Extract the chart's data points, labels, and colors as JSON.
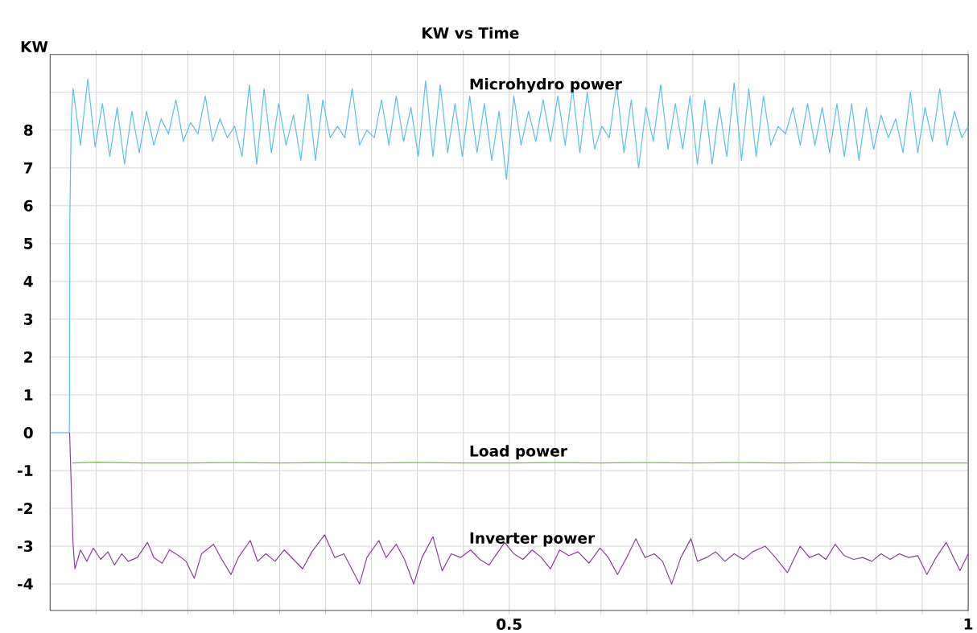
{
  "chart_data": {
    "type": "line",
    "title": "KW vs Time",
    "ylabel": "KW",
    "xlim": [
      0,
      1
    ],
    "ylim": [
      -4.7,
      10
    ],
    "xticks": [
      {
        "value": 0.05,
        "label": null
      },
      {
        "value": 0.1,
        "label": null
      },
      {
        "value": 0.15,
        "label": null
      },
      {
        "value": 0.2,
        "label": null
      },
      {
        "value": 0.25,
        "label": null
      },
      {
        "value": 0.3,
        "label": null
      },
      {
        "value": 0.35,
        "label": null
      },
      {
        "value": 0.4,
        "label": null
      },
      {
        "value": 0.45,
        "label": null
      },
      0.5,
      {
        "value": 0.55,
        "label": null
      },
      {
        "value": 0.6,
        "label": null
      },
      {
        "value": 0.65,
        "label": null
      },
      {
        "value": 0.7,
        "label": null
      },
      {
        "value": 0.75,
        "label": null
      },
      {
        "value": 0.8,
        "label": null
      },
      {
        "value": 0.85,
        "label": null
      },
      {
        "value": 0.9,
        "label": null
      },
      {
        "value": 0.95,
        "label": null
      },
      1
    ],
    "yticks": [
      -4,
      -3,
      -2,
      -1,
      0,
      1,
      2,
      3,
      4,
      5,
      6,
      7,
      8,
      {
        "value": 9,
        "label": null
      }
    ],
    "grid": true,
    "series": [
      {
        "name": "Microhydro power",
        "color": "#5bbfe8",
        "x": [
          0,
          0.021,
          0.0215,
          0.023,
          0.025,
          0.033,
          0.041,
          0.049,
          0.057,
          0.065,
          0.073,
          0.081,
          0.089,
          0.097,
          0.105,
          0.113,
          0.121,
          0.129,
          0.137,
          0.145,
          0.153,
          0.161,
          0.169,
          0.177,
          0.185,
          0.193,
          0.201,
          0.209,
          0.217,
          0.225,
          0.233,
          0.241,
          0.249,
          0.257,
          0.265,
          0.273,
          0.281,
          0.289,
          0.297,
          0.305,
          0.313,
          0.321,
          0.329,
          0.337,
          0.345,
          0.353,
          0.361,
          0.369,
          0.377,
          0.385,
          0.393,
          0.401,
          0.409,
          0.417,
          0.425,
          0.433,
          0.441,
          0.449,
          0.457,
          0.465,
          0.473,
          0.481,
          0.489,
          0.497,
          0.505,
          0.513,
          0.521,
          0.529,
          0.537,
          0.545,
          0.553,
          0.561,
          0.569,
          0.577,
          0.585,
          0.593,
          0.601,
          0.609,
          0.617,
          0.625,
          0.633,
          0.641,
          0.649,
          0.657,
          0.665,
          0.673,
          0.681,
          0.689,
          0.697,
          0.705,
          0.713,
          0.721,
          0.729,
          0.737,
          0.745,
          0.753,
          0.761,
          0.769,
          0.777,
          0.785,
          0.793,
          0.801,
          0.809,
          0.817,
          0.825,
          0.833,
          0.841,
          0.849,
          0.857,
          0.865,
          0.873,
          0.881,
          0.889,
          0.897,
          0.905,
          0.913,
          0.921,
          0.929,
          0.937,
          0.945,
          0.953,
          0.961,
          0.969,
          0.977,
          0.985,
          0.993,
          1.0
        ],
        "values": [
          0,
          0,
          5.7,
          8.3,
          9.1,
          7.6,
          9.35,
          7.55,
          8.7,
          7.3,
          8.6,
          7.1,
          8.5,
          7.4,
          8.5,
          7.6,
          8.3,
          7.9,
          8.8,
          7.7,
          8.2,
          7.9,
          8.9,
          7.7,
          8.3,
          7.8,
          8.1,
          7.3,
          9.2,
          7.1,
          9.1,
          7.4,
          8.7,
          7.6,
          8.4,
          7.2,
          8.95,
          7.2,
          8.8,
          7.8,
          8.1,
          7.8,
          9.1,
          7.6,
          8.0,
          7.8,
          8.8,
          7.6,
          8.9,
          7.7,
          8.6,
          7.3,
          9.3,
          7.3,
          9.2,
          7.4,
          8.7,
          7.3,
          8.9,
          7.4,
          8.7,
          7.2,
          8.5,
          6.7,
          8.9,
          7.6,
          8.5,
          7.7,
          8.8,
          7.7,
          8.9,
          7.6,
          9.1,
          7.4,
          9.0,
          7.5,
          8.1,
          7.8,
          9.2,
          7.4,
          8.8,
          7.0,
          8.6,
          7.7,
          9.2,
          7.5,
          8.7,
          7.5,
          8.9,
          7.1,
          8.8,
          7.1,
          8.6,
          7.3,
          9.25,
          7.2,
          9.1,
          7.3,
          8.9,
          7.6,
          8.1,
          7.9,
          8.6,
          7.6,
          8.7,
          7.6,
          8.6,
          7.4,
          8.7,
          7.3,
          8.7,
          7.2,
          8.6,
          7.5,
          8.4,
          7.8,
          8.3,
          7.4,
          9.0,
          7.4,
          8.6,
          7.7,
          9.1,
          7.6,
          8.5,
          7.8,
          8.1
        ]
      },
      {
        "name": "Load power",
        "color": "#7ab648",
        "x": [
          0.024,
          0.05,
          0.1,
          0.15,
          0.2,
          0.25,
          0.3,
          0.35,
          0.4,
          0.45,
          0.5,
          0.55,
          0.6,
          0.65,
          0.7,
          0.75,
          0.8,
          0.85,
          0.9,
          0.95,
          1.0
        ],
        "values": [
          -0.8,
          -0.78,
          -0.8,
          -0.8,
          -0.79,
          -0.8,
          -0.79,
          -0.8,
          -0.79,
          -0.8,
          -0.8,
          -0.79,
          -0.8,
          -0.79,
          -0.8,
          -0.79,
          -0.8,
          -0.79,
          -0.8,
          -0.8,
          -0.8
        ]
      },
      {
        "name": "Inverter power",
        "color": "#8a3f98",
        "x": [
          0.0212,
          0.025,
          0.027,
          0.033,
          0.04,
          0.047,
          0.055,
          0.063,
          0.07,
          0.078,
          0.085,
          0.095,
          0.106,
          0.113,
          0.122,
          0.13,
          0.14,
          0.148,
          0.157,
          0.165,
          0.178,
          0.187,
          0.197,
          0.205,
          0.218,
          0.226,
          0.235,
          0.245,
          0.255,
          0.265,
          0.275,
          0.285,
          0.299,
          0.31,
          0.32,
          0.337,
          0.345,
          0.358,
          0.366,
          0.377,
          0.386,
          0.396,
          0.405,
          0.417,
          0.427,
          0.437,
          0.447,
          0.458,
          0.468,
          0.478,
          0.495,
          0.505,
          0.515,
          0.525,
          0.535,
          0.545,
          0.555,
          0.565,
          0.575,
          0.587,
          0.599,
          0.608,
          0.618,
          0.628,
          0.638,
          0.648,
          0.658,
          0.667,
          0.677,
          0.687,
          0.698,
          0.705,
          0.715,
          0.725,
          0.735,
          0.745,
          0.755,
          0.765,
          0.779,
          0.79,
          0.803,
          0.817,
          0.827,
          0.837,
          0.845,
          0.855,
          0.865,
          0.875,
          0.885,
          0.895,
          0.905,
          0.915,
          0.925,
          0.935,
          0.945,
          0.955,
          0.965,
          0.976,
          0.984,
          0.991,
          1.0
        ],
        "values": [
          0,
          -2.95,
          -3.6,
          -3.1,
          -3.4,
          -3.05,
          -3.35,
          -3.15,
          -3.5,
          -3.2,
          -3.4,
          -3.3,
          -2.9,
          -3.3,
          -3.45,
          -3.1,
          -3.25,
          -3.4,
          -3.85,
          -3.2,
          -2.95,
          -3.35,
          -3.75,
          -3.3,
          -2.85,
          -3.4,
          -3.2,
          -3.4,
          -3.1,
          -3.35,
          -3.6,
          -3.15,
          -2.7,
          -3.3,
          -3.2,
          -4.0,
          -3.3,
          -2.85,
          -3.3,
          -2.95,
          -3.35,
          -4.0,
          -3.3,
          -2.75,
          -3.65,
          -3.2,
          -3.3,
          -3.1,
          -3.35,
          -3.5,
          -2.9,
          -3.2,
          -3.35,
          -3.1,
          -3.3,
          -3.6,
          -3.1,
          -3.25,
          -3.15,
          -3.45,
          -3.05,
          -3.3,
          -3.75,
          -3.3,
          -2.8,
          -3.3,
          -3.2,
          -3.4,
          -4.0,
          -3.3,
          -2.8,
          -3.4,
          -3.3,
          -3.15,
          -3.4,
          -3.2,
          -3.35,
          -3.15,
          -3.0,
          -3.3,
          -3.7,
          -3.0,
          -3.3,
          -3.2,
          -3.35,
          -2.95,
          -3.25,
          -3.35,
          -3.3,
          -3.4,
          -3.2,
          -3.35,
          -3.2,
          -3.3,
          -3.25,
          -3.75,
          -3.3,
          -2.9,
          -3.3,
          -3.65,
          -3.2
        ]
      }
    ]
  }
}
